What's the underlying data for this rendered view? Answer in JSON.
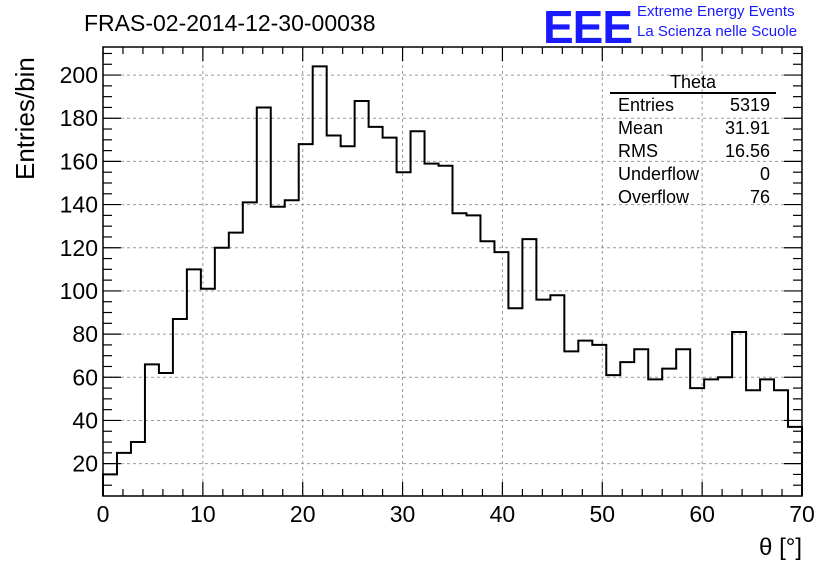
{
  "title": "FRAS-02-2014-12-30-00038",
  "logo": {
    "mark": "EEE",
    "line1": "Extreme Energy Events",
    "line2": "La Scienza nelle Scuole",
    "color": "#1a1aff"
  },
  "stats": {
    "name": "Theta",
    "rows": [
      {
        "label": "Entries",
        "value": "5319"
      },
      {
        "label": "Mean",
        "value": "31.91"
      },
      {
        "label": "RMS",
        "value": "16.56"
      },
      {
        "label": "Underflow",
        "value": "0"
      },
      {
        "label": "Overflow",
        "value": "76"
      }
    ]
  },
  "chart_data": {
    "type": "bar",
    "histogram": true,
    "xlabel": "θ [°]",
    "ylabel": "Entries/bin",
    "xlim": [
      0,
      70
    ],
    "ylim": [
      5,
      213
    ],
    "bin_width": 1.4,
    "grid": true,
    "x_ticks": [
      "0",
      "10",
      "20",
      "30",
      "40",
      "50",
      "60",
      "70"
    ],
    "y_ticks": [
      "20",
      "40",
      "60",
      "80",
      "100",
      "120",
      "140",
      "160",
      "180",
      "200"
    ],
    "values": [
      15,
      25,
      30,
      66,
      62,
      87,
      110,
      101,
      120,
      127,
      141,
      185,
      139,
      142,
      168,
      204,
      172,
      167,
      188,
      176,
      171,
      155,
      174,
      159,
      158,
      136,
      135,
      123,
      118,
      92,
      124,
      96,
      98,
      72,
      77,
      75,
      61,
      67,
      73,
      59,
      64,
      73,
      55,
      59,
      60,
      81,
      54,
      59,
      54,
      37
    ]
  }
}
